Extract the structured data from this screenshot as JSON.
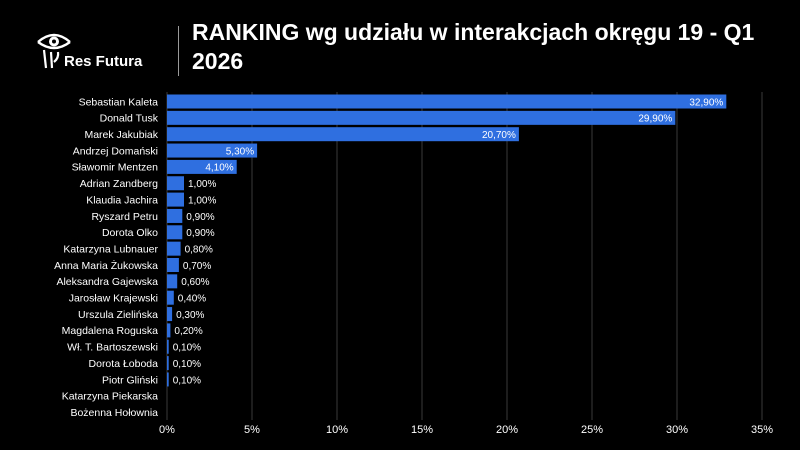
{
  "brand": {
    "name": "Res Futura",
    "icon": "eye-logo-icon"
  },
  "chart_data": {
    "type": "bar",
    "orientation": "horizontal",
    "title": "RANKING wg udziału w interakcjach okręgu 19 - Q1 2026",
    "categories": [
      "Sebastian Kaleta",
      "Donald Tusk",
      "Marek Jakubiak",
      "Andrzej Domański",
      "Sławomir Mentzen",
      "Adrian Zandberg",
      "Klaudia Jachira",
      "Ryszard Petru",
      "Dorota Olko",
      "Katarzyna Lubnauer",
      "Anna Maria Żukowska",
      "Aleksandra Gajewska",
      "Jarosław Krajewski",
      "Urszula Zielińska",
      "Magdalena Roguska",
      "Wł. T. Bartoszewski",
      "Dorota Łoboda",
      "Piotr Gliński",
      "Katarzyna Piekarska",
      "Bożenna Hołownia"
    ],
    "values": [
      32.9,
      29.9,
      20.7,
      5.3,
      4.1,
      1.0,
      1.0,
      0.9,
      0.9,
      0.8,
      0.7,
      0.6,
      0.4,
      0.3,
      0.2,
      0.1,
      0.1,
      0.1,
      0,
      0
    ],
    "data_labels": [
      "32,90%",
      "29,90%",
      "20,70%",
      "5,30%",
      "4,10%",
      "1,00%",
      "1,00%",
      "0,90%",
      "0,90%",
      "0,80%",
      "0,70%",
      "0,60%",
      "0,40%",
      "0,30%",
      "0,20%",
      "0,10%",
      "0,10%",
      "0,10%",
      "",
      ""
    ],
    "xlim": [
      0,
      35
    ],
    "xticks": [
      0,
      5,
      10,
      15,
      20,
      25,
      30,
      35
    ],
    "xtick_labels": [
      "0%",
      "5%",
      "10%",
      "15%",
      "20%",
      "25%",
      "30%",
      "35%"
    ],
    "gridlines": "vertical",
    "legend": "none",
    "colors": {
      "bar": "#2f6fe0",
      "background": "#000000",
      "grid": "#3a3a3a",
      "text": "#ffffff"
    }
  }
}
